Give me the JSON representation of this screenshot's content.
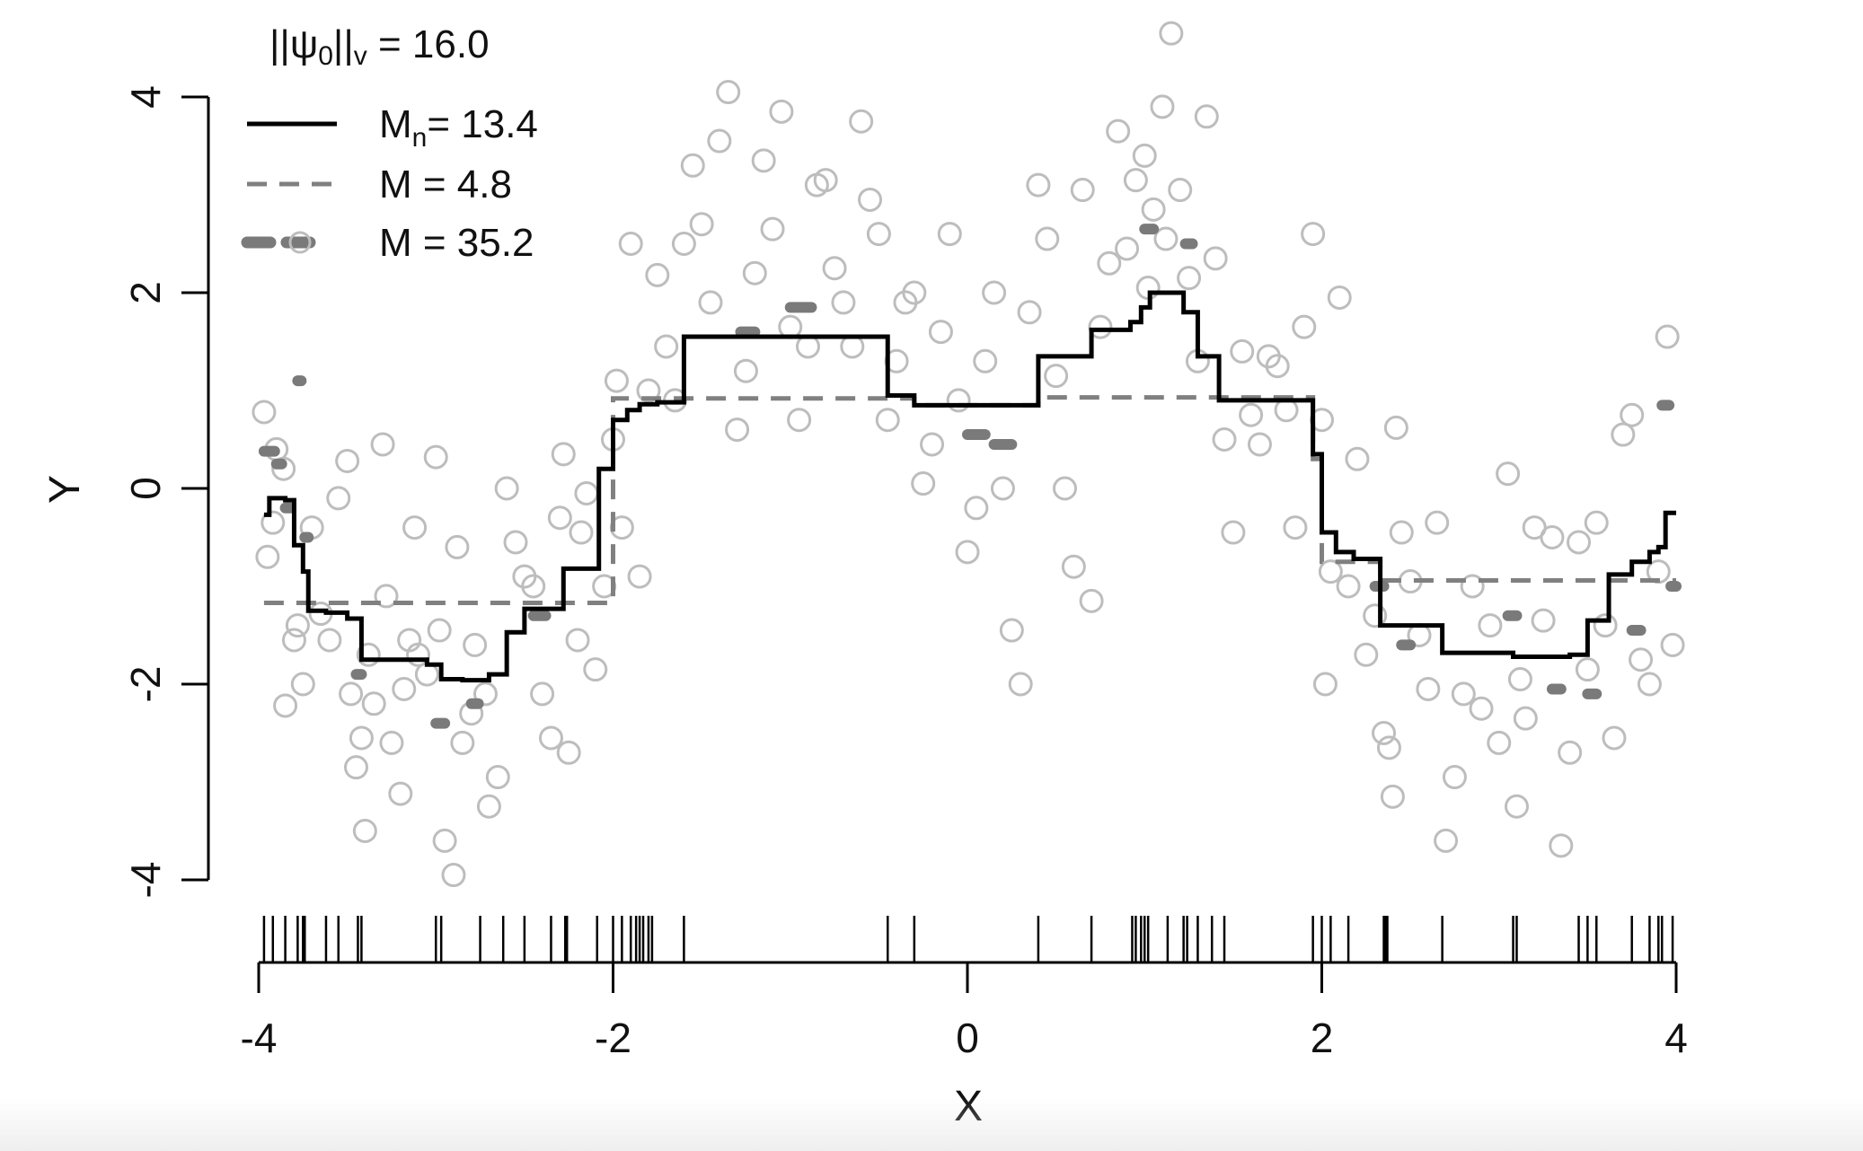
{
  "chart_data": {
    "type": "scatter",
    "title": "||ψ0||v = 16.0",
    "title_parts": {
      "prefix": "||ψ",
      "sub0": "0",
      "mid": "||",
      "subv": "v",
      "suffix": " = 16.0"
    },
    "xlabel": "X",
    "ylabel": "Y",
    "xlim": [
      -4,
      4
    ],
    "ylim": [
      -4,
      4
    ],
    "xticks": [
      "-4",
      "-2",
      "0",
      "2",
      "4"
    ],
    "yticks": [
      "-4",
      "-2",
      "0",
      "2",
      "4"
    ],
    "legend_position": "top-left",
    "legend": [
      {
        "label_main": "M",
        "label_sub": "n",
        "label_rest": "= 13.4",
        "style": "solid"
      },
      {
        "label_main": "M",
        "label_sub": "",
        "label_rest": " = 4.8",
        "style": "dashed"
      },
      {
        "label_main": "M",
        "label_sub": "",
        "label_rest": " = 35.2",
        "style": "thick-dashed"
      }
    ],
    "colors": {
      "points": "#bdbdbd",
      "solid": "#000000",
      "dashed": "#808080",
      "thick_dashed": "#7a7a7a",
      "axis": "#000000"
    },
    "rug_x": [
      -3.97,
      -3.92,
      -3.85,
      -3.78,
      -3.75,
      -3.74,
      -3.62,
      -3.55,
      -3.44,
      -3.42,
      -3.0,
      -2.97,
      -2.75,
      -2.62,
      -2.5,
      -2.35,
      -2.27,
      -2.26,
      -2.09,
      -2.0,
      -1.95,
      -1.9,
      -1.87,
      -1.85,
      -1.83,
      -1.8,
      -1.78,
      -1.6,
      -0.45,
      -0.3,
      0.4,
      0.7,
      0.93,
      0.95,
      0.98,
      1.0,
      1.02,
      1.13,
      1.22,
      1.24,
      1.3,
      1.38,
      1.45,
      1.95,
      2.0,
      2.05,
      2.15,
      2.35,
      2.36,
      2.37,
      2.68,
      3.08,
      3.1,
      3.45,
      3.5,
      3.55,
      3.75,
      3.85,
      3.9,
      3.92,
      3.98
    ],
    "series": [
      {
        "name": "Mn= 13.4",
        "style": "solid",
        "steps": [
          [
            -3.97,
            -0.27
          ],
          [
            -3.94,
            -0.1
          ],
          [
            -3.85,
            -0.12
          ],
          [
            -3.8,
            -0.58
          ],
          [
            -3.75,
            -0.85
          ],
          [
            -3.72,
            -1.25
          ],
          [
            -3.62,
            -1.27
          ],
          [
            -3.5,
            -1.33
          ],
          [
            -3.42,
            -1.75
          ],
          [
            -3.05,
            -1.8
          ],
          [
            -2.97,
            -1.95
          ],
          [
            -2.85,
            -1.96
          ],
          [
            -2.7,
            -1.9
          ],
          [
            -2.6,
            -1.47
          ],
          [
            -2.5,
            -1.23
          ],
          [
            -2.28,
            -0.82
          ],
          [
            -2.08,
            0.2
          ],
          [
            -2.0,
            0.7
          ],
          [
            -1.92,
            0.8
          ],
          [
            -1.85,
            0.86
          ],
          [
            -1.75,
            0.88
          ],
          [
            -1.6,
            1.55
          ],
          [
            -0.45,
            0.95
          ],
          [
            -0.3,
            0.85
          ],
          [
            0.4,
            1.35
          ],
          [
            0.7,
            1.62
          ],
          [
            0.92,
            1.7
          ],
          [
            0.98,
            1.85
          ],
          [
            1.03,
            2.0
          ],
          [
            1.22,
            1.8
          ],
          [
            1.3,
            1.35
          ],
          [
            1.42,
            0.9
          ],
          [
            1.95,
            0.35
          ],
          [
            2.0,
            -0.45
          ],
          [
            2.08,
            -0.65
          ],
          [
            2.18,
            -0.72
          ],
          [
            2.33,
            -1.4
          ],
          [
            2.68,
            -1.68
          ],
          [
            3.08,
            -1.72
          ],
          [
            3.4,
            -1.7
          ],
          [
            3.5,
            -1.35
          ],
          [
            3.62,
            -0.88
          ],
          [
            3.75,
            -0.75
          ],
          [
            3.85,
            -0.65
          ],
          [
            3.9,
            -0.6
          ],
          [
            3.94,
            -0.25
          ],
          [
            4.0,
            -0.25
          ]
        ]
      },
      {
        "name": "M = 4.8",
        "style": "dashed",
        "steps": [
          [
            -3.97,
            -1.17
          ],
          [
            -2.0,
            0.92
          ],
          [
            -0.45,
            0.92
          ],
          [
            -0.3,
            0.85
          ],
          [
            0.4,
            0.93
          ],
          [
            1.95,
            0.3
          ],
          [
            2.0,
            -0.75
          ],
          [
            2.33,
            -0.94
          ],
          [
            4.0,
            -0.94
          ]
        ]
      },
      {
        "name": "M = 35.2",
        "style": "thick-dashed",
        "segments": [
          [
            -3.97,
            -3.91,
            0.38
          ],
          [
            -3.9,
            -3.87,
            0.25
          ],
          [
            -3.85,
            -3.82,
            -0.2
          ],
          [
            -3.78,
            -3.76,
            1.1
          ],
          [
            -3.74,
            -3.72,
            -0.5
          ],
          [
            -3.45,
            -3.42,
            -1.9
          ],
          [
            -3.0,
            -2.95,
            -2.4
          ],
          [
            -2.8,
            -2.76,
            -2.2
          ],
          [
            -2.45,
            -2.38,
            -1.3
          ],
          [
            -1.28,
            -1.2,
            1.6
          ],
          [
            -1.0,
            -0.88,
            1.85
          ],
          [
            0.0,
            0.1,
            0.55
          ],
          [
            0.15,
            0.25,
            0.45
          ],
          [
            1.0,
            1.05,
            2.65
          ],
          [
            1.23,
            1.27,
            2.5
          ],
          [
            2.3,
            2.35,
            -1.0
          ],
          [
            2.45,
            2.5,
            -1.6
          ],
          [
            3.05,
            3.1,
            -1.3
          ],
          [
            3.3,
            3.35,
            -2.05
          ],
          [
            3.5,
            3.55,
            -2.1
          ],
          [
            3.75,
            3.8,
            -1.45
          ],
          [
            3.92,
            3.96,
            0.85
          ],
          [
            3.97,
            4.0,
            -1.0
          ]
        ]
      }
    ],
    "points": [
      [
        -3.97,
        0.78
      ],
      [
        -3.95,
        -0.7
      ],
      [
        -3.92,
        -0.35
      ],
      [
        -3.9,
        0.4
      ],
      [
        -3.86,
        0.2
      ],
      [
        -3.85,
        -2.22
      ],
      [
        -3.8,
        -1.55
      ],
      [
        -3.78,
        -1.4
      ],
      [
        -3.75,
        -2.0
      ],
      [
        -3.7,
        -0.4
      ],
      [
        -3.65,
        -1.28
      ],
      [
        -3.6,
        -1.55
      ],
      [
        -3.55,
        -0.1
      ],
      [
        -3.5,
        0.28
      ],
      [
        -3.48,
        -2.1
      ],
      [
        -3.45,
        -2.85
      ],
      [
        -3.42,
        -2.55
      ],
      [
        -3.4,
        -3.5
      ],
      [
        -3.38,
        -1.7
      ],
      [
        -3.35,
        -2.2
      ],
      [
        -3.3,
        0.45
      ],
      [
        -3.28,
        -1.1
      ],
      [
        -3.25,
        -2.6
      ],
      [
        -3.2,
        -3.12
      ],
      [
        -3.18,
        -2.05
      ],
      [
        -3.15,
        -1.55
      ],
      [
        -3.12,
        -0.4
      ],
      [
        -3.1,
        -1.7
      ],
      [
        -3.05,
        -1.9
      ],
      [
        -3.0,
        0.32
      ],
      [
        -2.98,
        -1.45
      ],
      [
        -2.95,
        -3.6
      ],
      [
        -2.9,
        -3.95
      ],
      [
        -2.88,
        -0.6
      ],
      [
        -2.85,
        -2.6
      ],
      [
        -2.8,
        -2.3
      ],
      [
        -2.78,
        -1.6
      ],
      [
        -2.72,
        -2.1
      ],
      [
        -2.7,
        -3.25
      ],
      [
        -2.65,
        -2.95
      ],
      [
        -2.6,
        0.0
      ],
      [
        -2.55,
        -0.55
      ],
      [
        -2.5,
        -0.9
      ],
      [
        -2.45,
        -1.0
      ],
      [
        -2.4,
        -2.1
      ],
      [
        -2.35,
        -2.55
      ],
      [
        -2.3,
        -0.3
      ],
      [
        -2.28,
        0.35
      ],
      [
        -2.25,
        -2.7
      ],
      [
        -2.2,
        -1.55
      ],
      [
        -2.18,
        -0.45
      ],
      [
        -2.15,
        -0.05
      ],
      [
        -2.1,
        -1.85
      ],
      [
        -2.05,
        -1.0
      ],
      [
        -2.0,
        0.5
      ],
      [
        -1.98,
        1.1
      ],
      [
        -1.95,
        -0.4
      ],
      [
        -1.9,
        2.5
      ],
      [
        -1.85,
        -0.9
      ],
      [
        -1.8,
        1.0
      ],
      [
        -1.75,
        2.18
      ],
      [
        -1.7,
        1.45
      ],
      [
        -1.65,
        0.9
      ],
      [
        -1.6,
        2.5
      ],
      [
        -1.55,
        3.3
      ],
      [
        -1.5,
        2.7
      ],
      [
        -1.45,
        1.9
      ],
      [
        -1.4,
        3.55
      ],
      [
        -1.35,
        4.05
      ],
      [
        -1.3,
        0.6
      ],
      [
        -1.25,
        1.2
      ],
      [
        -1.2,
        2.2
      ],
      [
        -1.15,
        3.35
      ],
      [
        -1.1,
        2.65
      ],
      [
        -1.05,
        3.85
      ],
      [
        -1.0,
        1.65
      ],
      [
        -0.95,
        0.7
      ],
      [
        -0.9,
        1.45
      ],
      [
        -0.85,
        3.1
      ],
      [
        -0.8,
        3.15
      ],
      [
        -0.75,
        2.25
      ],
      [
        -0.7,
        1.9
      ],
      [
        -0.65,
        1.45
      ],
      [
        -0.6,
        3.75
      ],
      [
        -0.55,
        2.95
      ],
      [
        -0.5,
        2.6
      ],
      [
        -0.45,
        0.7
      ],
      [
        -0.4,
        1.3
      ],
      [
        -0.35,
        1.9
      ],
      [
        -0.3,
        2.0
      ],
      [
        -0.25,
        0.05
      ],
      [
        -0.2,
        0.45
      ],
      [
        -0.15,
        1.6
      ],
      [
        -0.1,
        2.6
      ],
      [
        -0.05,
        0.9
      ],
      [
        0.0,
        -0.65
      ],
      [
        0.05,
        -0.2
      ],
      [
        0.1,
        1.3
      ],
      [
        0.15,
        2.0
      ],
      [
        0.2,
        0.0
      ],
      [
        0.25,
        -1.45
      ],
      [
        0.3,
        -2.0
      ],
      [
        0.35,
        1.8
      ],
      [
        0.4,
        3.1
      ],
      [
        0.45,
        2.55
      ],
      [
        0.5,
        1.15
      ],
      [
        0.55,
        0.0
      ],
      [
        0.6,
        -0.8
      ],
      [
        0.65,
        3.05
      ],
      [
        0.7,
        -1.15
      ],
      [
        0.75,
        1.65
      ],
      [
        0.8,
        2.3
      ],
      [
        0.85,
        3.65
      ],
      [
        0.9,
        2.45
      ],
      [
        0.95,
        3.15
      ],
      [
        1.0,
        3.4
      ],
      [
        1.02,
        2.05
      ],
      [
        1.05,
        2.85
      ],
      [
        1.1,
        3.9
      ],
      [
        1.12,
        2.55
      ],
      [
        1.15,
        4.65
      ],
      [
        1.2,
        3.05
      ],
      [
        1.25,
        2.15
      ],
      [
        1.3,
        1.3
      ],
      [
        1.35,
        3.8
      ],
      [
        1.4,
        2.35
      ],
      [
        1.45,
        0.5
      ],
      [
        1.5,
        -0.45
      ],
      [
        1.55,
        1.4
      ],
      [
        1.6,
        0.75
      ],
      [
        1.65,
        0.45
      ],
      [
        1.7,
        1.35
      ],
      [
        1.75,
        1.25
      ],
      [
        1.8,
        0.8
      ],
      [
        1.85,
        -0.4
      ],
      [
        1.9,
        1.65
      ],
      [
        1.95,
        2.6
      ],
      [
        2.0,
        0.7
      ],
      [
        2.02,
        -2.0
      ],
      [
        2.05,
        -0.85
      ],
      [
        2.1,
        1.95
      ],
      [
        2.15,
        -1.0
      ],
      [
        2.2,
        0.3
      ],
      [
        2.25,
        -1.7
      ],
      [
        2.3,
        -1.3
      ],
      [
        2.35,
        -2.5
      ],
      [
        2.38,
        -2.65
      ],
      [
        2.4,
        -3.15
      ],
      [
        2.42,
        0.62
      ],
      [
        2.45,
        -0.45
      ],
      [
        2.5,
        -0.95
      ],
      [
        2.55,
        -1.5
      ],
      [
        2.6,
        -2.05
      ],
      [
        2.65,
        -0.35
      ],
      [
        2.7,
        -3.6
      ],
      [
        2.75,
        -2.95
      ],
      [
        2.8,
        -2.1
      ],
      [
        2.85,
        -1.0
      ],
      [
        2.9,
        -2.25
      ],
      [
        2.95,
        -1.4
      ],
      [
        3.0,
        -2.6
      ],
      [
        3.05,
        0.15
      ],
      [
        3.1,
        -3.25
      ],
      [
        3.12,
        -1.95
      ],
      [
        3.15,
        -2.35
      ],
      [
        3.2,
        -0.4
      ],
      [
        3.25,
        -1.35
      ],
      [
        3.3,
        -0.5
      ],
      [
        3.35,
        -3.65
      ],
      [
        3.4,
        -2.7
      ],
      [
        3.45,
        -0.55
      ],
      [
        3.5,
        -1.85
      ],
      [
        3.55,
        -0.35
      ],
      [
        3.6,
        -1.4
      ],
      [
        3.65,
        -2.55
      ],
      [
        3.7,
        0.55
      ],
      [
        3.75,
        0.75
      ],
      [
        3.8,
        -1.75
      ],
      [
        3.85,
        -2.0
      ],
      [
        3.9,
        -0.85
      ],
      [
        3.95,
        1.55
      ],
      [
        3.98,
        -1.6
      ]
    ]
  }
}
